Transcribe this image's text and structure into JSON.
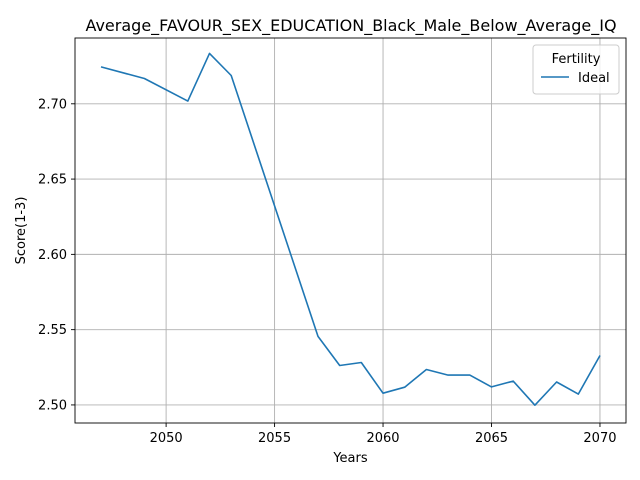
{
  "chart_data": {
    "type": "line",
    "title": "Average_FAVOUR_SEX_EDUCATION_Black_Male_Below_Average_IQ",
    "xlabel": "Years",
    "ylabel": "Score(1-3)",
    "xlim": [
      2045.8,
      2071.2
    ],
    "ylim": [
      2.488,
      2.7437
    ],
    "xticks": [
      2050,
      2055,
      2060,
      2065,
      2070
    ],
    "yticks": [
      2.5,
      2.55,
      2.6,
      2.65,
      2.7
    ],
    "xtick_labels": [
      "2050",
      "2055",
      "2060",
      "2065",
      "2070"
    ],
    "ytick_labels": [
      "2.50",
      "2.55",
      "2.60",
      "2.65",
      "2.70"
    ],
    "grid": true,
    "legend": {
      "title": "Fertility",
      "position": "top-right"
    },
    "series": [
      {
        "name": "Ideal",
        "color": "#1f77b4",
        "x": [
          2047,
          2049,
          2051,
          2052,
          2053,
          2057,
          2058,
          2059,
          2060,
          2061,
          2062,
          2063,
          2064,
          2065,
          2066,
          2067,
          2068,
          2069,
          2070
        ],
        "y": [
          2.7245,
          2.7168,
          2.7018,
          2.7335,
          2.7188,
          2.5455,
          2.5262,
          2.5282,
          2.5078,
          2.5118,
          2.5235,
          2.5198,
          2.5198,
          2.512,
          2.5158,
          2.4998,
          2.5152,
          2.5072,
          2.5328
        ]
      }
    ]
  }
}
